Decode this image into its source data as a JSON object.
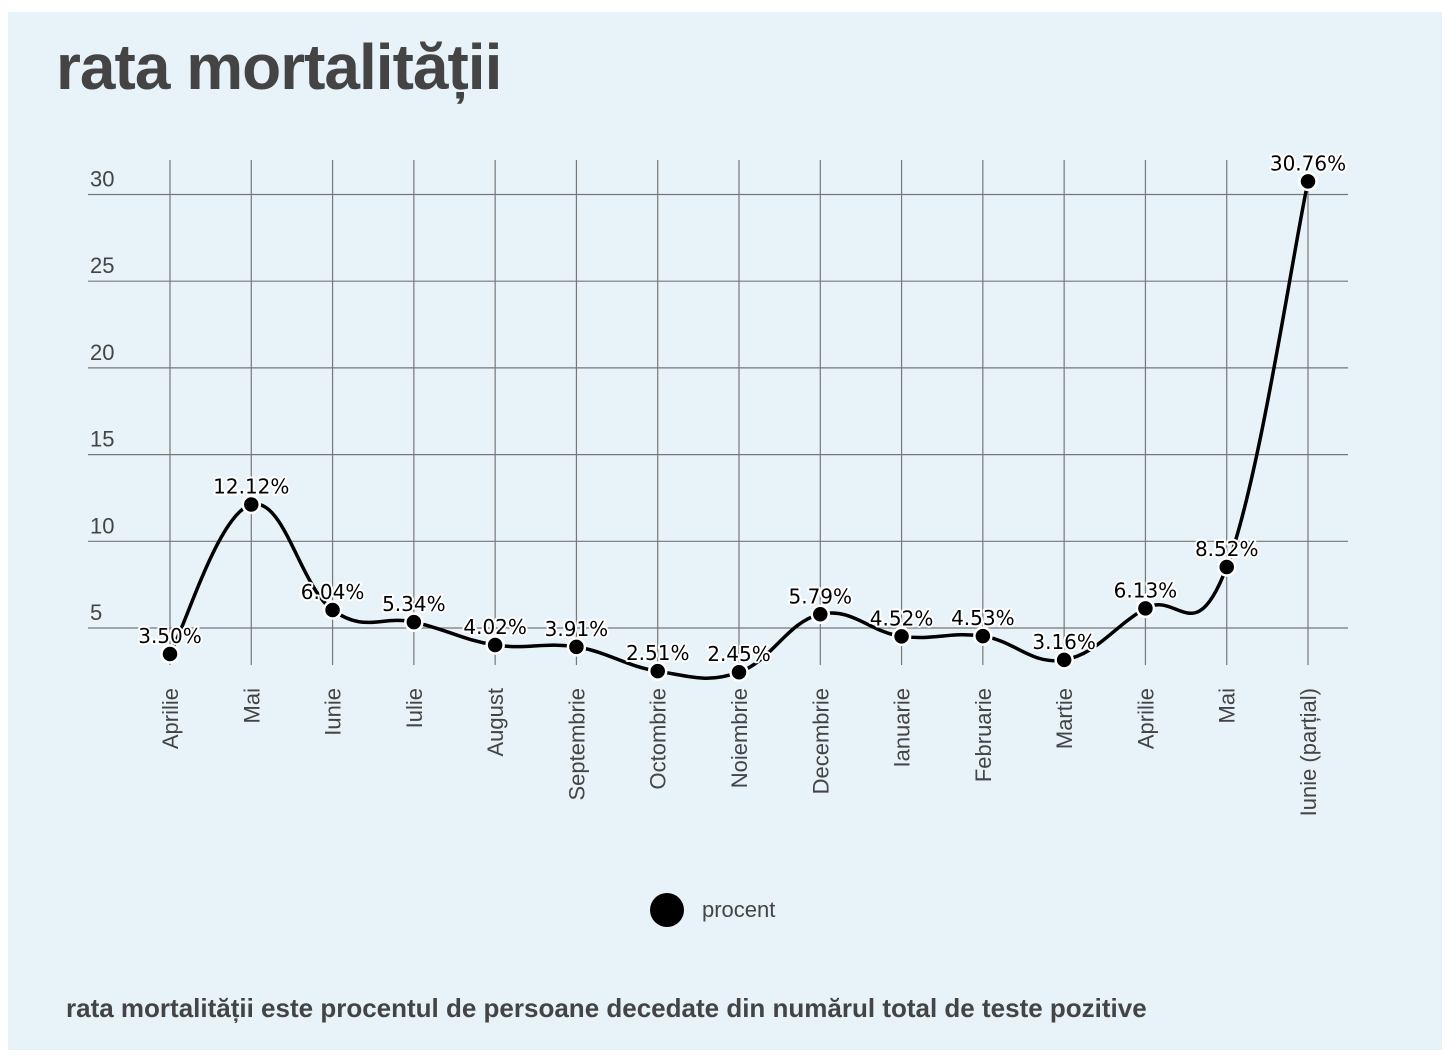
{
  "title": "rata mortalității",
  "footnote": "rata mortalității este procentul de persoane decedate din numărul total de teste pozitive",
  "legend": {
    "label": "procent"
  },
  "colors": {
    "background": "#e8f3f9",
    "line": "#000000",
    "grid": "#777777",
    "text": "#444444"
  },
  "chart_data": {
    "type": "line",
    "title": "rata mortalității",
    "categories": [
      "Aprilie",
      "Mai",
      "Iunie",
      "Iulie",
      "August",
      "Septembrie",
      "Octombrie",
      "Noiembrie",
      "Decembrie",
      "Ianuarie",
      "Februarie",
      "Martie",
      "Aprilie",
      "Mai",
      "Iunie (parțial)"
    ],
    "series": [
      {
        "name": "procent",
        "values": [
          3.5,
          12.12,
          6.04,
          5.34,
          4.02,
          3.91,
          2.51,
          2.45,
          5.79,
          4.52,
          4.53,
          3.16,
          6.13,
          8.52,
          30.76
        ],
        "labels": [
          "3.50%",
          "12.12%",
          "6.04%",
          "5.34%",
          "4.02%",
          "3.91%",
          "2.51%",
          "2.45%",
          "5.79%",
          "4.52%",
          "4.53%",
          "3.16%",
          "6.13%",
          "8.52%",
          "30.76%"
        ]
      }
    ],
    "y_ticks": [
      5,
      10,
      15,
      20,
      25,
      30
    ],
    "ylim": [
      1,
      32
    ],
    "grid": true,
    "legend_position": "bottom-center"
  }
}
